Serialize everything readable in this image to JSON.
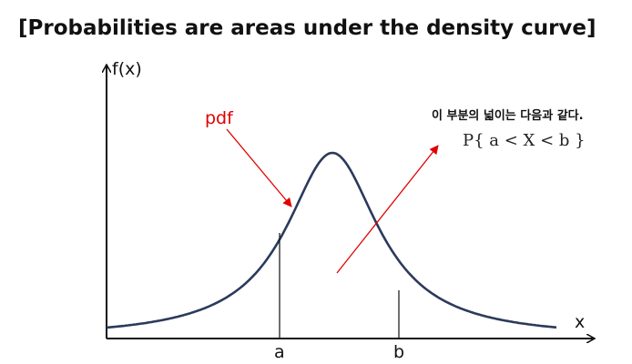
{
  "title": "[Probabilities are areas under the density curve]",
  "y_axis_label": "f(x)",
  "x_axis_label": "x",
  "curve_label": "pdf",
  "annotation_text": "이 부분의 넓이는 다음과 같다.",
  "formula": "P{ a < X < b }",
  "bounds": {
    "a_label": "a",
    "b_label": "b"
  },
  "colors": {
    "curve": "#2b3a5c",
    "arrow": "#e00000",
    "axis": "#111111",
    "text": "#111111"
  }
}
